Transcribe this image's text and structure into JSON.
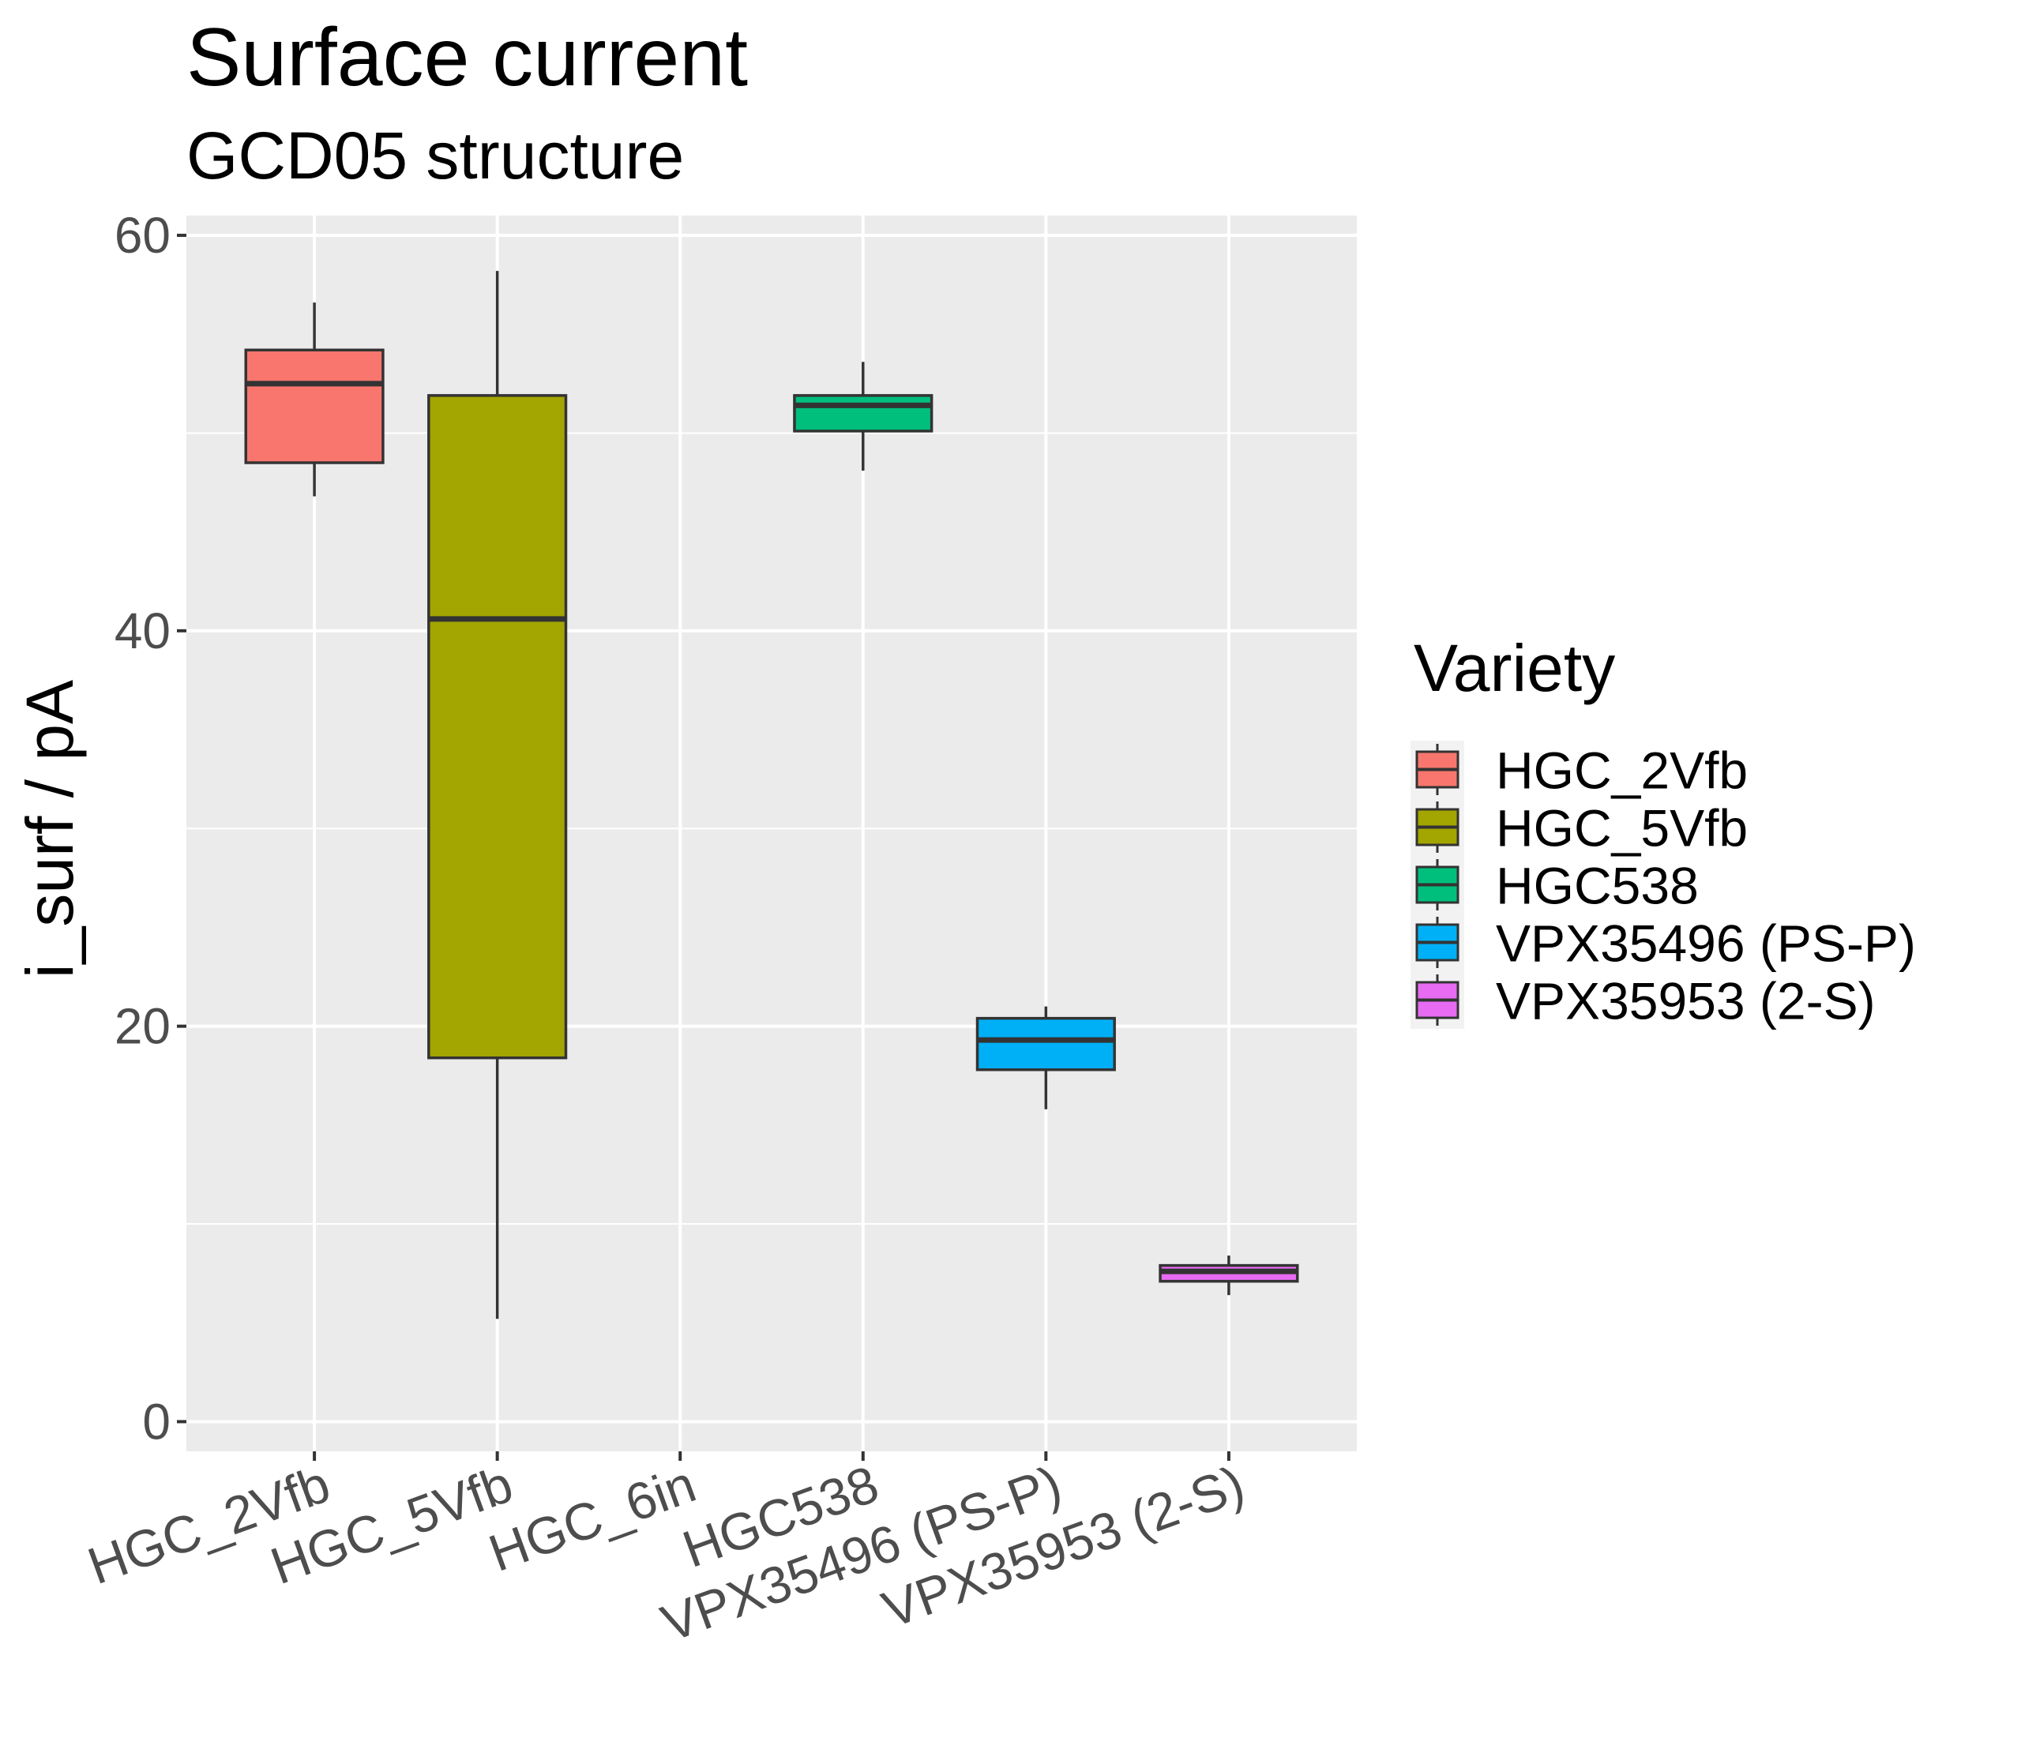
{
  "chart_data": {
    "type": "boxplot",
    "title": "Surface current",
    "subtitle": "GCD05 structure",
    "xlabel": "",
    "ylabel": "i_surf / pA",
    "ylim": [
      -1.5,
      61
    ],
    "yticks": [
      0,
      20,
      40,
      60
    ],
    "grid": true,
    "legend_title": "Variety",
    "legend_position": "right",
    "categories": [
      "HGC_2Vfb",
      "HGC_5Vfb",
      "HGC_6in",
      "HGC538",
      "VPX35496 (PS-P)",
      "VPX35953 (2-S)"
    ],
    "series": [
      {
        "name": "HGC_2Vfb",
        "category": "HGC_2Vfb",
        "color": "#F8766D",
        "whisker_low": 46.8,
        "q1": 48.5,
        "median": 52.5,
        "q3": 54.2,
        "whisker_high": 56.6
      },
      {
        "name": "HGC_5Vfb",
        "category": "HGC_5Vfb",
        "color": "#A3A500",
        "whisker_low": 5.2,
        "q1": 18.4,
        "median": 40.6,
        "q3": 51.9,
        "whisker_high": 58.2
      },
      {
        "name": "HGC538",
        "category": "HGC538",
        "color": "#00BF7D",
        "whisker_low": 48.1,
        "q1": 50.1,
        "median": 51.4,
        "q3": 51.9,
        "whisker_high": 53.6
      },
      {
        "name": "VPX35496 (PS-P)",
        "category": "VPX35496 (PS-P)",
        "color": "#00B0F6",
        "whisker_low": 15.8,
        "q1": 17.8,
        "median": 19.3,
        "q3": 20.4,
        "whisker_high": 21.0
      },
      {
        "name": "VPX35953 (2-S)",
        "category": "VPX35953 (2-S)",
        "color": "#E76BF3",
        "whisker_low": 6.4,
        "q1": 7.1,
        "median": 7.6,
        "q3": 7.9,
        "whisker_high": 8.4
      }
    ]
  }
}
